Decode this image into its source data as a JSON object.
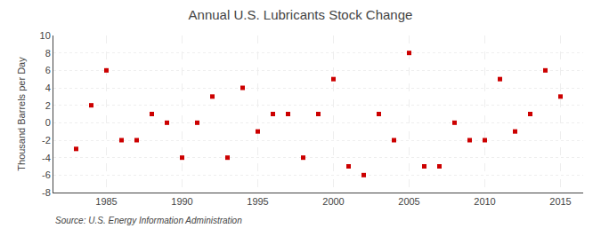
{
  "chart_data": {
    "type": "scatter",
    "title": "Annual U.S. Lubricants Stock Change",
    "ylabel": "Thousand Barrels per Day",
    "source": "Source: U.S. Energy Information Administration",
    "x": [
      1983,
      1984,
      1985,
      1986,
      1987,
      1988,
      1989,
      1990,
      1991,
      1992,
      1993,
      1994,
      1995,
      1996,
      1997,
      1998,
      1999,
      2000,
      2001,
      2002,
      2003,
      2004,
      2005,
      2006,
      2007,
      2008,
      2009,
      2010,
      2011,
      2012,
      2013,
      2014,
      2015
    ],
    "values": [
      -3,
      2,
      6,
      -2,
      -2,
      1,
      0,
      -4,
      0,
      3,
      -4,
      4,
      -1,
      1,
      1,
      -4,
      1,
      5,
      -5,
      -6,
      1,
      -2,
      8,
      -5,
      -5,
      0,
      -2,
      -2,
      5,
      -1,
      1,
      6,
      3
    ],
    "color": "#cc0000",
    "marker": "square",
    "xlim": [
      1981.5,
      2016.5
    ],
    "ylim": [
      -8,
      10
    ],
    "xticks": [
      1985,
      1990,
      1995,
      2000,
      2005,
      2010,
      2015
    ],
    "yticks": [
      -8,
      -6,
      -4,
      -2,
      0,
      2,
      4,
      6,
      8,
      10
    ],
    "grid": true
  }
}
